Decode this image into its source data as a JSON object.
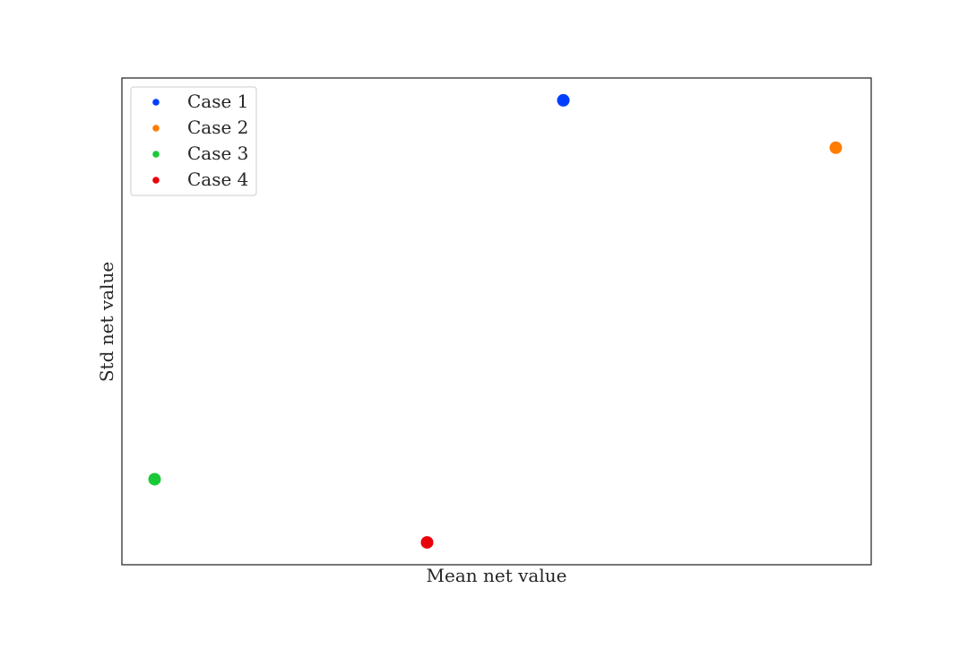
{
  "chart_data": {
    "type": "scatter",
    "title": "",
    "xlabel": "Mean net value",
    "ylabel": "Std net value",
    "xticks_visible": false,
    "yticks_visible": false,
    "grid": false,
    "legend_position": "upper-left",
    "xlim": [
      -0.1,
      5.4
    ],
    "ylim": [
      -0.35,
      3.35
    ],
    "series": [
      {
        "name": "Case 1",
        "color": "#023eff",
        "x": [
          3.14
        ],
        "y": [
          3.18
        ]
      },
      {
        "name": "Case 2",
        "color": "#ff7c00",
        "x": [
          5.14
        ],
        "y": [
          2.82
        ]
      },
      {
        "name": "Case 3",
        "color": "#1ac938",
        "x": [
          0.14
        ],
        "y": [
          0.3
        ]
      },
      {
        "name": "Case 4",
        "color": "#e8000b",
        "x": [
          2.14
        ],
        "y": [
          -0.18
        ]
      }
    ]
  }
}
